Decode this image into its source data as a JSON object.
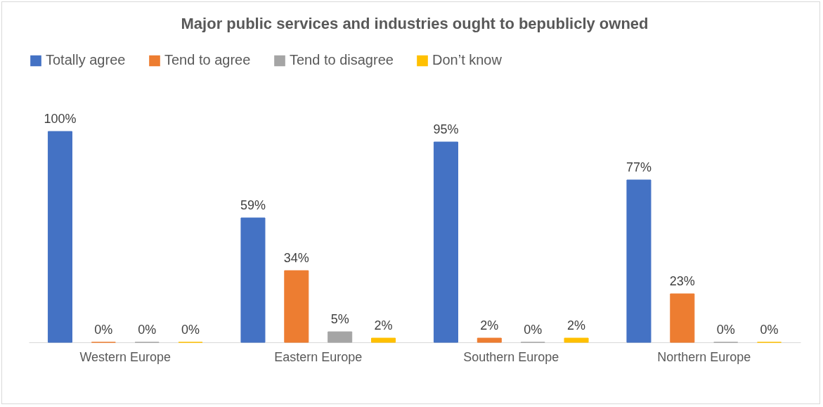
{
  "chart_data": {
    "type": "bar",
    "title": "Major public services and industries ought to bepublicly owned",
    "categories": [
      "Western Europe",
      "Eastern Europe",
      "Southern Europe",
      "Northern Europe"
    ],
    "series": [
      {
        "name": "Totally agree",
        "color": "#4472c4",
        "values": [
          100,
          59,
          95,
          77
        ],
        "value_labels": [
          "100%",
          "59%",
          "95%",
          "77%"
        ]
      },
      {
        "name": "Tend to agree",
        "color": "#ed7d31",
        "values": [
          0,
          34,
          2,
          23
        ],
        "value_labels": [
          "0%",
          "34%",
          "2%",
          "23%"
        ]
      },
      {
        "name": "Tend to disagree",
        "color": "#a5a5a5",
        "values": [
          0,
          5,
          0,
          0
        ],
        "value_labels": [
          "0%",
          "5%",
          "0%",
          "0%"
        ]
      },
      {
        "name": "Don’t know",
        "color": "#ffc000",
        "values": [
          0,
          2,
          2,
          0
        ],
        "value_labels": [
          "0%",
          "2%",
          "2%",
          "0%"
        ]
      }
    ],
    "legend": "top",
    "grid": false
  }
}
